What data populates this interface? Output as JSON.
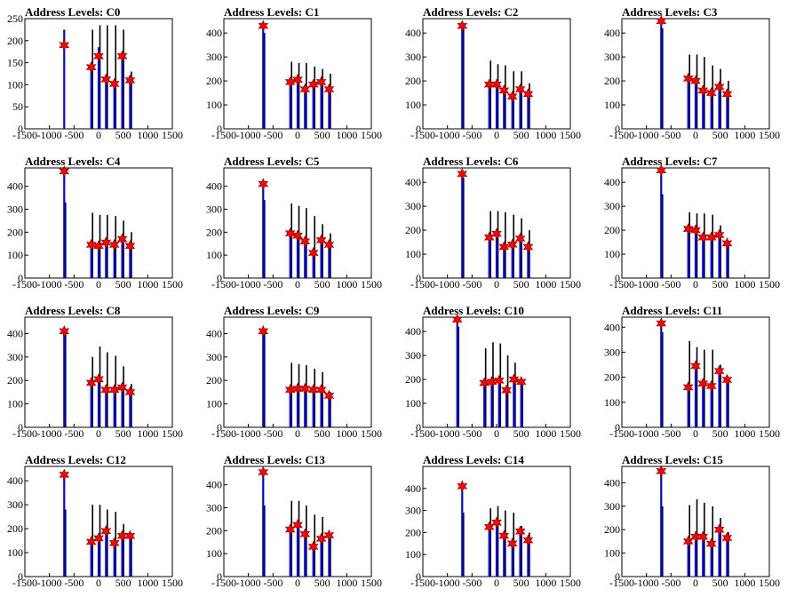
{
  "chart_data": [
    {
      "title": "Address Levels: C0",
      "type": "bar",
      "xlim": [
        -1500,
        1500
      ],
      "ylim": [
        0,
        250
      ],
      "yticks": [
        0,
        50,
        100,
        150,
        200,
        250
      ],
      "xticks": [
        -1500,
        -1000,
        -500,
        0,
        500,
        1000,
        1500
      ],
      "xticklabels": [
        "-1500",
        "-1000",
        "-500",
        "0",
        "500",
        "1000",
        "1500"
      ],
      "peaks_x": [
        -700,
        -150,
        0,
        150,
        320,
        480,
        640
      ],
      "bars_black": [
        0,
        225,
        235,
        235,
        235,
        225,
        130
      ],
      "bars_blue": [
        225,
        150,
        185,
        115,
        105,
        165,
        120
      ],
      "markers": [
        190,
        140,
        165,
        112,
        102,
        165,
        110
      ]
    },
    {
      "title": "Address Levels: C1",
      "type": "bar",
      "xlim": [
        -1500,
        1500
      ],
      "ylim": [
        0,
        460
      ],
      "yticks": [
        0,
        100,
        200,
        300,
        400
      ],
      "xticks": [
        -1500,
        -1000,
        -500,
        0,
        500,
        1000,
        1500
      ],
      "xticklabels": [
        "-1500",
        "-1000",
        "-500",
        "0",
        "500",
        "1000",
        "1500"
      ],
      "peaks_x": [
        -700,
        -150,
        0,
        150,
        320,
        480,
        640
      ],
      "bars_black": [
        400,
        280,
        275,
        275,
        260,
        250,
        230
      ],
      "bars_blue": [
        435,
        200,
        210,
        175,
        185,
        195,
        170
      ],
      "markers": [
        430,
        195,
        205,
        165,
        185,
        195,
        165
      ]
    },
    {
      "title": "Address Levels: C2",
      "type": "bar",
      "xlim": [
        -1500,
        1500
      ],
      "ylim": [
        0,
        460
      ],
      "yticks": [
        0,
        100,
        200,
        300,
        400
      ],
      "xticks": [
        -1500,
        -1000,
        -500,
        0,
        500,
        1000,
        1500
      ],
      "xticklabels": [
        "-1500",
        "-1000",
        "-500",
        "0",
        "500",
        "1000",
        "1500"
      ],
      "peaks_x": [
        -700,
        -150,
        0,
        150,
        320,
        480,
        640
      ],
      "bars_black": [
        420,
        285,
        270,
        265,
        240,
        240,
        190
      ],
      "bars_blue": [
        435,
        190,
        190,
        160,
        150,
        175,
        145
      ],
      "markers": [
        430,
        185,
        185,
        160,
        135,
        165,
        145
      ]
    },
    {
      "title": "Address Levels: C3",
      "type": "bar",
      "xlim": [
        -1500,
        1500
      ],
      "ylim": [
        0,
        460
      ],
      "yticks": [
        0,
        100,
        200,
        300,
        400
      ],
      "xticks": [
        -1500,
        -1000,
        -500,
        0,
        500,
        1000,
        1500
      ],
      "xticklabels": [
        "-1500",
        "-1000",
        "-500",
        "0",
        "500",
        "1000",
        "1500"
      ],
      "peaks_x": [
        -700,
        -150,
        0,
        150,
        320,
        480,
        640
      ],
      "bars_black": [
        420,
        310,
        310,
        300,
        265,
        250,
        200
      ],
      "bars_blue": [
        450,
        210,
        200,
        160,
        150,
        175,
        145
      ],
      "markers": [
        450,
        210,
        200,
        160,
        150,
        175,
        145
      ]
    },
    {
      "title": "Address Levels: C4",
      "type": "bar",
      "xlim": [
        -1500,
        1500
      ],
      "ylim": [
        0,
        480
      ],
      "yticks": [
        0,
        100,
        200,
        300,
        400
      ],
      "xticks": [
        -1500,
        -1000,
        -500,
        0,
        500,
        1000,
        1500
      ],
      "xticklabels": [
        "-1500",
        "-1000",
        "-500",
        "0",
        "500",
        "1000",
        "1500"
      ],
      "peaks_x": [
        -700,
        -150,
        0,
        150,
        320,
        480,
        640
      ],
      "bars_black": [
        330,
        285,
        275,
        275,
        270,
        250,
        200
      ],
      "bars_blue": [
        465,
        145,
        140,
        155,
        145,
        165,
        140
      ],
      "markers": [
        465,
        145,
        140,
        155,
        145,
        170,
        140
      ]
    },
    {
      "title": "Address Levels: C5",
      "type": "bar",
      "xlim": [
        -1500,
        1500
      ],
      "ylim": [
        0,
        480
      ],
      "yticks": [
        0,
        100,
        200,
        300,
        400
      ],
      "xticks": [
        -1500,
        -1000,
        -500,
        0,
        500,
        1000,
        1500
      ],
      "xticklabels": [
        "-1500",
        "-1000",
        "-500",
        "0",
        "500",
        "1000",
        "1500"
      ],
      "peaks_x": [
        -700,
        -150,
        0,
        150,
        320,
        480,
        640
      ],
      "bars_black": [
        340,
        325,
        315,
        305,
        270,
        235,
        195
      ],
      "bars_blue": [
        410,
        195,
        185,
        160,
        115,
        165,
        145
      ],
      "markers": [
        410,
        195,
        185,
        160,
        110,
        165,
        145
      ]
    },
    {
      "title": "Address Levels: C6",
      "type": "bar",
      "xlim": [
        -1500,
        1500
      ],
      "ylim": [
        0,
        460
      ],
      "yticks": [
        0,
        100,
        200,
        300,
        400
      ],
      "xticks": [
        -1500,
        -1000,
        -500,
        0,
        500,
        1000,
        1500
      ],
      "xticklabels": [
        "-1500",
        "-1000",
        "-500",
        "0",
        "500",
        "1000",
        "1500"
      ],
      "peaks_x": [
        -700,
        -150,
        0,
        150,
        320,
        480,
        640
      ],
      "bars_black": [
        420,
        280,
        280,
        275,
        265,
        250,
        200
      ],
      "bars_blue": [
        435,
        170,
        185,
        135,
        140,
        165,
        130
      ],
      "markers": [
        435,
        170,
        185,
        130,
        140,
        165,
        130
      ]
    },
    {
      "title": "Address Levels: C7",
      "type": "bar",
      "xlim": [
        -1500,
        1500
      ],
      "ylim": [
        0,
        460
      ],
      "yticks": [
        0,
        100,
        200,
        300,
        400
      ],
      "xticks": [
        -1500,
        -1000,
        -500,
        0,
        500,
        1000,
        1500
      ],
      "xticklabels": [
        "-1500",
        "-1000",
        "-500",
        "0",
        "500",
        "1000",
        "1500"
      ],
      "peaks_x": [
        -700,
        -150,
        0,
        150,
        320,
        480,
        640
      ],
      "bars_black": [
        350,
        275,
        270,
        270,
        265,
        220,
        150
      ],
      "bars_blue": [
        450,
        210,
        200,
        170,
        170,
        180,
        145
      ],
      "markers": [
        450,
        205,
        200,
        170,
        170,
        180,
        145
      ]
    },
    {
      "title": "Address Levels: C8",
      "type": "bar",
      "xlim": [
        -1500,
        1500
      ],
      "ylim": [
        0,
        470
      ],
      "yticks": [
        0,
        100,
        200,
        300,
        400
      ],
      "xticks": [
        -1500,
        -1000,
        -500,
        0,
        500,
        1000,
        1500
      ],
      "xticklabels": [
        "-1500",
        "-1000",
        "-500",
        "0",
        "500",
        "1000",
        "1500"
      ],
      "peaks_x": [
        -700,
        -150,
        0,
        150,
        320,
        480,
        640
      ],
      "bars_black": [
        400,
        300,
        345,
        320,
        305,
        260,
        185
      ],
      "bars_blue": [
        415,
        190,
        205,
        165,
        160,
        175,
        150
      ],
      "markers": [
        410,
        190,
        205,
        160,
        160,
        170,
        150
      ]
    },
    {
      "title": "Address Levels: C9",
      "type": "bar",
      "xlim": [
        -1500,
        1500
      ],
      "ylim": [
        0,
        470
      ],
      "yticks": [
        0,
        100,
        200,
        300,
        400
      ],
      "xticks": [
        -1500,
        -1000,
        -500,
        0,
        500,
        1000,
        1500
      ],
      "xticklabels": [
        "-1500",
        "-1000",
        "-500",
        "0",
        "500",
        "1000",
        "1500"
      ],
      "peaks_x": [
        -700,
        -150,
        0,
        150,
        320,
        480,
        640
      ],
      "bars_black": [
        400,
        275,
        270,
        265,
        250,
        235,
        150
      ],
      "bars_blue": [
        410,
        160,
        165,
        165,
        160,
        160,
        135
      ],
      "markers": [
        410,
        160,
        165,
        165,
        160,
        160,
        135
      ]
    },
    {
      "title": "Address Levels: C10",
      "type": "bar",
      "xlim": [
        -1500,
        1500
      ],
      "ylim": [
        0,
        460
      ],
      "yticks": [
        0,
        100,
        200,
        300,
        400
      ],
      "xticks": [
        -1500,
        -1000,
        -500,
        0,
        500,
        1000,
        1500
      ],
      "xticklabels": [
        "-1500",
        "-1000",
        "-500",
        "0",
        "500",
        "1000",
        "1500"
      ],
      "peaks_x": [
        -800,
        -250,
        -100,
        50,
        200,
        350,
        500
      ],
      "bars_black": [
        420,
        330,
        355,
        350,
        300,
        270,
        200
      ],
      "bars_blue": [
        450,
        185,
        190,
        200,
        160,
        205,
        190
      ],
      "markers": [
        450,
        185,
        190,
        195,
        155,
        200,
        190
      ]
    },
    {
      "title": "Address Levels: C11",
      "type": "bar",
      "xlim": [
        -1500,
        1500
      ],
      "ylim": [
        0,
        440
      ],
      "yticks": [
        0,
        100,
        200,
        300,
        400
      ],
      "xticks": [
        -1500,
        -1000,
        -500,
        0,
        500,
        1000,
        1500
      ],
      "xticklabels": [
        "-1500",
        "-1000",
        "-500",
        "0",
        "500",
        "1000",
        "1500"
      ],
      "peaks_x": [
        -700,
        -150,
        0,
        150,
        320,
        480,
        640
      ],
      "bars_black": [
        380,
        345,
        320,
        310,
        310,
        250,
        190
      ],
      "bars_blue": [
        415,
        160,
        245,
        175,
        165,
        225,
        190
      ],
      "markers": [
        415,
        160,
        245,
        175,
        165,
        225,
        190
      ]
    },
    {
      "title": "Address Levels: C12",
      "type": "bar",
      "xlim": [
        -1500,
        1500
      ],
      "ylim": [
        0,
        460
      ],
      "yticks": [
        0,
        100,
        200,
        300,
        400
      ],
      "xticks": [
        -1500,
        -1000,
        -500,
        0,
        500,
        1000,
        1500
      ],
      "xticklabels": [
        "-1500",
        "-1000",
        "-500",
        "0",
        "500",
        "1000",
        "1500"
      ],
      "peaks_x": [
        -700,
        -150,
        0,
        150,
        320,
        480,
        640
      ],
      "bars_black": [
        280,
        300,
        300,
        280,
        270,
        220,
        180
      ],
      "bars_blue": [
        430,
        145,
        160,
        190,
        140,
        170,
        170
      ],
      "markers": [
        425,
        145,
        160,
        190,
        140,
        170,
        170
      ]
    },
    {
      "title": "Address Levels: C13",
      "type": "bar",
      "xlim": [
        -1500,
        1500
      ],
      "ylim": [
        0,
        480
      ],
      "yticks": [
        0,
        100,
        200,
        300,
        400
      ],
      "xticks": [
        -1500,
        -1000,
        -500,
        0,
        500,
        1000,
        1500
      ],
      "xticklabels": [
        "-1500",
        "-1000",
        "-500",
        "0",
        "500",
        "1000",
        "1500"
      ],
      "peaks_x": [
        -700,
        -150,
        0,
        150,
        320,
        480,
        640
      ],
      "bars_black": [
        310,
        330,
        330,
        310,
        270,
        260,
        170
      ],
      "bars_blue": [
        455,
        210,
        225,
        185,
        135,
        170,
        185
      ],
      "markers": [
        455,
        205,
        225,
        185,
        130,
        165,
        180
      ]
    },
    {
      "title": "Address Levels: C14",
      "type": "bar",
      "xlim": [
        -1500,
        1500
      ],
      "ylim": [
        0,
        500
      ],
      "yticks": [
        0,
        100,
        200,
        300,
        400
      ],
      "xticks": [
        -1500,
        -1000,
        -500,
        0,
        500,
        1000,
        1500
      ],
      "xticklabels": [
        "-1500",
        "-1000",
        "-500",
        "0",
        "500",
        "1000",
        "1500"
      ],
      "peaks_x": [
        -700,
        -150,
        0,
        150,
        320,
        480,
        640
      ],
      "bars_black": [
        290,
        310,
        320,
        300,
        290,
        230,
        200
      ],
      "bars_blue": [
        410,
        230,
        245,
        185,
        150,
        205,
        165
      ],
      "markers": [
        410,
        225,
        245,
        185,
        150,
        205,
        165
      ]
    },
    {
      "title": "Address Levels: C15",
      "type": "bar",
      "xlim": [
        -1500,
        1500
      ],
      "ylim": [
        0,
        470
      ],
      "yticks": [
        0,
        100,
        200,
        300,
        400
      ],
      "xticks": [
        -1500,
        -1000,
        -500,
        0,
        500,
        1000,
        1500
      ],
      "xticklabels": [
        "-1500",
        "-1000",
        "-500",
        "0",
        "500",
        "1000",
        "1500"
      ],
      "peaks_x": [
        -700,
        -150,
        0,
        150,
        320,
        480,
        640
      ],
      "bars_black": [
        300,
        305,
        330,
        315,
        300,
        250,
        190
      ],
      "bars_blue": [
        450,
        150,
        170,
        170,
        140,
        200,
        165
      ],
      "markers": [
        450,
        150,
        170,
        170,
        140,
        200,
        165
      ]
    }
  ],
  "colors": {
    "bar_black": "#000000",
    "bar_blue": "#0000ff",
    "marker": "#ff0000",
    "marker_edge": "#800000"
  }
}
